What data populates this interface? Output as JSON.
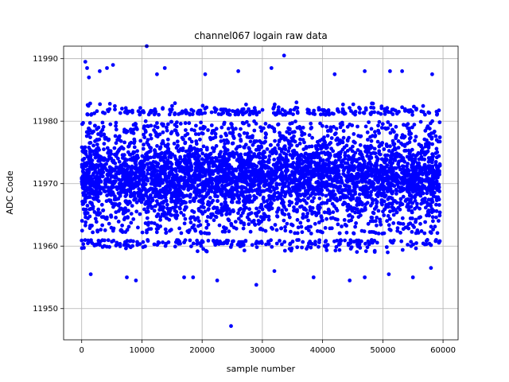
{
  "chart_data": {
    "type": "scatter",
    "title": "channel067 logain raw data",
    "xlabel": "sample number",
    "ylabel": "ADC Code",
    "xlim": [
      -3000,
      62500
    ],
    "ylim": [
      11945,
      11992
    ],
    "xticks": [
      0,
      10000,
      20000,
      30000,
      40000,
      50000,
      60000
    ],
    "yticks": [
      11950,
      11960,
      11970,
      11980,
      11990
    ],
    "grid": true,
    "marker_color": "#0000ff",
    "series": [
      {
        "sample_range": [
          0,
          59500
        ],
        "dense_band": [
          11961,
          11981
        ],
        "outliers": [
          {
            "x": 600,
            "y": 11989.5
          },
          {
            "x": 900,
            "y": 11988.5
          },
          {
            "x": 1200,
            "y": 11987
          },
          {
            "x": 3000,
            "y": 11988
          },
          {
            "x": 4200,
            "y": 11988.5
          },
          {
            "x": 5200,
            "y": 11989
          },
          {
            "x": 10800,
            "y": 11992
          },
          {
            "x": 13800,
            "y": 11988.5
          },
          {
            "x": 12500,
            "y": 11987.5
          },
          {
            "x": 20500,
            "y": 11987.5
          },
          {
            "x": 26000,
            "y": 11988
          },
          {
            "x": 33600,
            "y": 11990.5
          },
          {
            "x": 31500,
            "y": 11988.5
          },
          {
            "x": 42000,
            "y": 11987.5
          },
          {
            "x": 47000,
            "y": 11988
          },
          {
            "x": 51200,
            "y": 11988
          },
          {
            "x": 53200,
            "y": 11988
          },
          {
            "x": 58200,
            "y": 11987.5
          },
          {
            "x": 1500,
            "y": 11955.5
          },
          {
            "x": 7500,
            "y": 11955
          },
          {
            "x": 9000,
            "y": 11954.5
          },
          {
            "x": 17000,
            "y": 11955
          },
          {
            "x": 18500,
            "y": 11955
          },
          {
            "x": 22500,
            "y": 11954.5
          },
          {
            "x": 24800,
            "y": 11947.2
          },
          {
            "x": 29000,
            "y": 11953.8
          },
          {
            "x": 32000,
            "y": 11956
          },
          {
            "x": 38500,
            "y": 11955
          },
          {
            "x": 44500,
            "y": 11954.5
          },
          {
            "x": 47000,
            "y": 11955
          },
          {
            "x": 51000,
            "y": 11955.5
          },
          {
            "x": 55000,
            "y": 11955
          },
          {
            "x": 58000,
            "y": 11956.5
          }
        ]
      }
    ]
  }
}
